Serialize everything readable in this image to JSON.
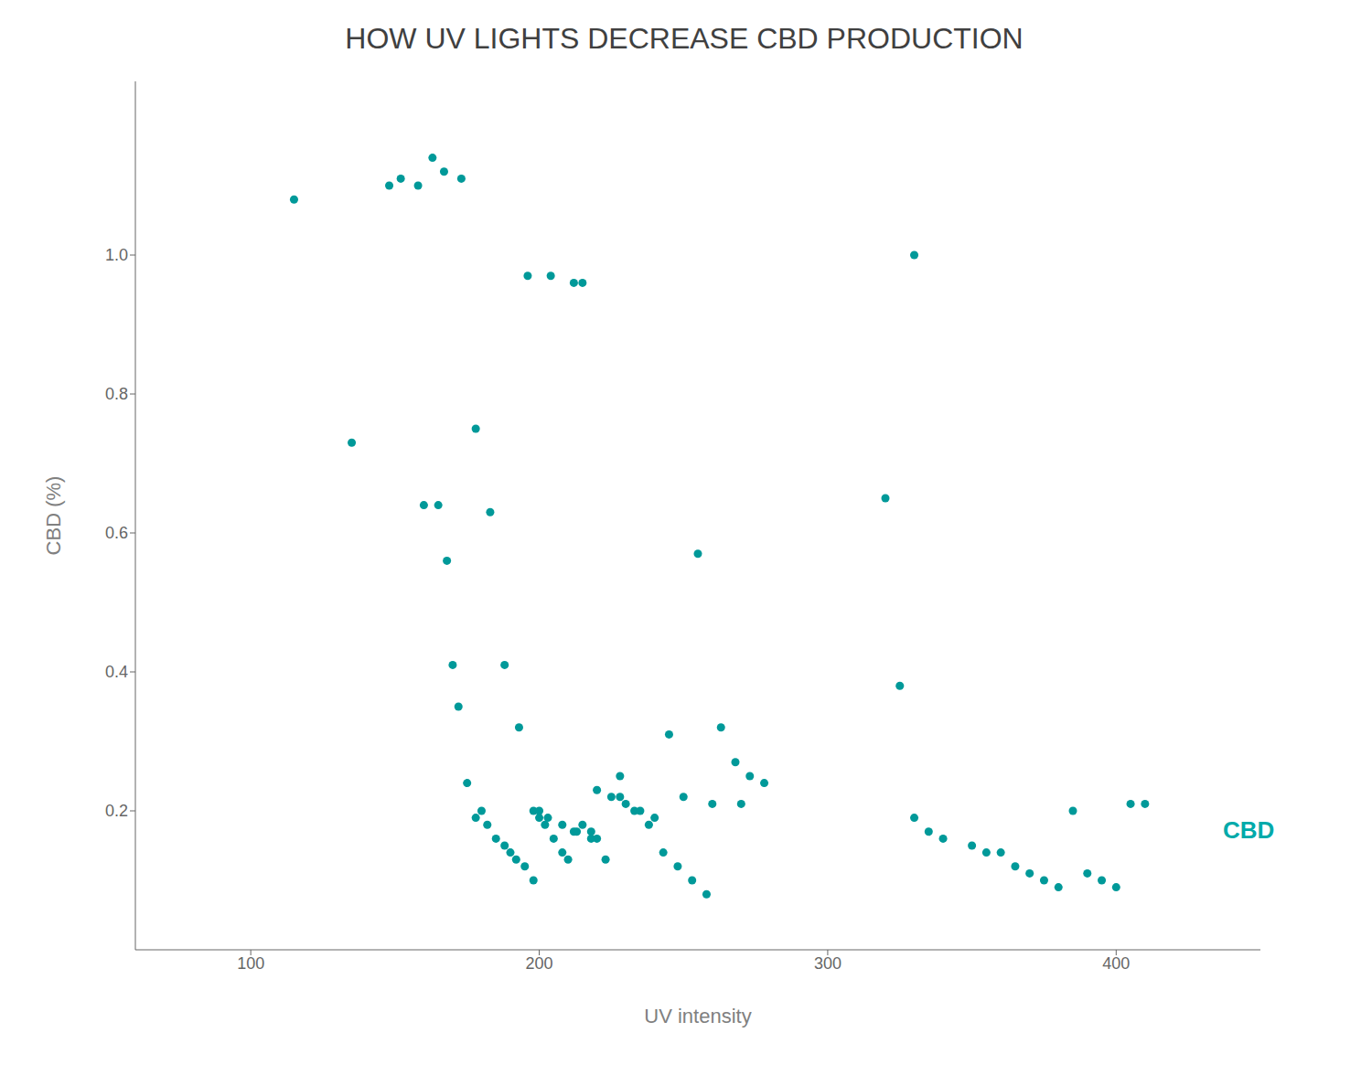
{
  "chart_data": {
    "type": "scatter",
    "title": "HOW UV LIGHTS DECREASE CBD PRODUCTION",
    "x_label": "UV intensity",
    "y_label": "CBD (%)",
    "color": "#009999",
    "grid": false,
    "xlim": [
      60,
      450
    ],
    "ylim": [
      0,
      1.25
    ],
    "xticks": [
      100,
      200,
      300,
      400
    ],
    "yticks": [
      0.2,
      0.4,
      0.6,
      0.8,
      {
        "value": 1,
        "label": "1.0"
      }
    ],
    "annotations": [
      {
        "text": "CBD",
        "x": 437,
        "y": 0.17,
        "color": "#00AAAA"
      }
    ],
    "x": [
      115,
      135,
      148,
      152,
      158,
      160,
      163,
      165,
      167,
      168,
      170,
      172,
      173,
      175,
      178,
      178,
      180,
      182,
      183,
      185,
      188,
      188,
      190,
      192,
      193,
      195,
      196,
      198,
      198,
      200,
      200,
      202,
      203,
      204,
      205,
      208,
      208,
      210,
      212,
      212,
      213,
      215,
      215,
      218,
      218,
      220,
      220,
      223,
      225,
      228,
      228,
      230,
      233,
      235,
      238,
      240,
      243,
      245,
      248,
      250,
      253,
      255,
      258,
      260,
      263,
      268,
      270,
      273,
      278,
      320,
      325,
      330,
      330,
      335,
      340,
      350,
      355,
      360,
      365,
      370,
      375,
      380,
      385,
      390,
      395,
      400,
      405,
      410
    ],
    "values": [
      1.08,
      0.73,
      1.1,
      1.11,
      1.1,
      0.64,
      1.14,
      0.64,
      1.12,
      0.56,
      0.41,
      0.35,
      1.11,
      0.24,
      0.19,
      0.75,
      0.2,
      0.18,
      0.63,
      0.16,
      0.15,
      0.41,
      0.14,
      0.13,
      0.32,
      0.12,
      0.97,
      0.1,
      0.2,
      0.2,
      0.19,
      0.18,
      0.19,
      0.97,
      0.16,
      0.14,
      0.18,
      0.13,
      0.96,
      0.17,
      0.17,
      0.18,
      0.96,
      0.16,
      0.17,
      0.16,
      0.23,
      0.13,
      0.22,
      0.25,
      0.22,
      0.21,
      0.2,
      0.2,
      0.18,
      0.19,
      0.14,
      0.31,
      0.12,
      0.22,
      0.1,
      0.57,
      0.08,
      0.21,
      0.32,
      0.27,
      0.21,
      0.25,
      0.24,
      0.65,
      0.38,
      0.19,
      1.0,
      0.17,
      0.16,
      0.15,
      0.14,
      0.14,
      0.12,
      0.11,
      0.1,
      0.09,
      0.2,
      0.11,
      0.1,
      0.09,
      0.21,
      0.21
    ]
  }
}
